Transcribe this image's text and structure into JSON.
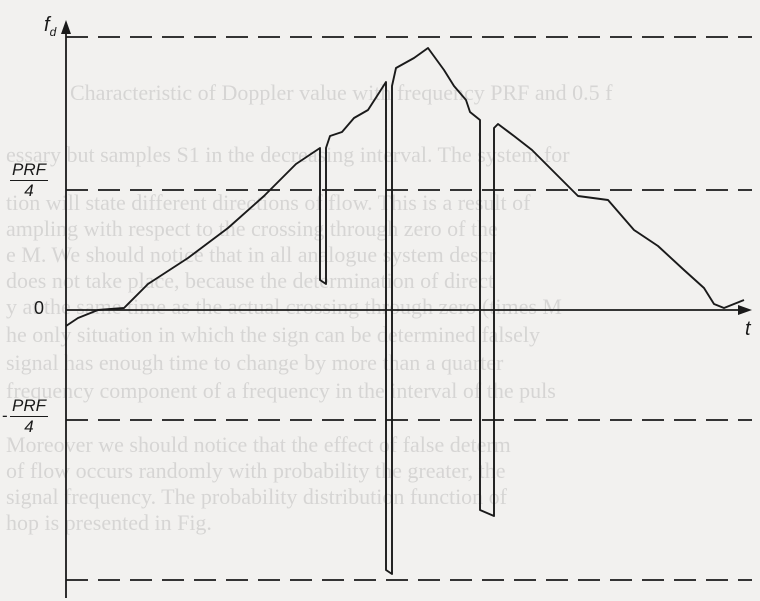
{
  "diagram": {
    "y_axis_label": "f",
    "y_axis_subscript": "d",
    "x_axis_label": "t",
    "zero_label": "0",
    "pos_level": {
      "num": "PRF",
      "den": "4"
    },
    "neg_level": {
      "num": "PRF",
      "den": "4",
      "sign": "-"
    }
  },
  "bleed_text": [
    "Characteristic of Doppler value with frequency PRF and 0.5 f",
    "essary but samples S1 in the decreasing interval. The system for",
    "tion will state different directions of flow. This is a result of",
    "ampling with respect to the crossing through zero of the",
    "e M. We should notice that in all analogue system descr",
    "does not take place, because the determination of direct",
    "y at the same time as the actual crossing through zero (times M",
    "he only situation in which the sign can be determined falsely",
    "signal has enough time to change by more than a quarter",
    "frequency component of a frequency in the interval of the puls",
    "Moreover we should notice that the effect of false determ",
    "of flow occurs randomly with probability the greater, the",
    "signal frequency. The probability distribution function of",
    "hop is presented in Fig."
  ]
}
